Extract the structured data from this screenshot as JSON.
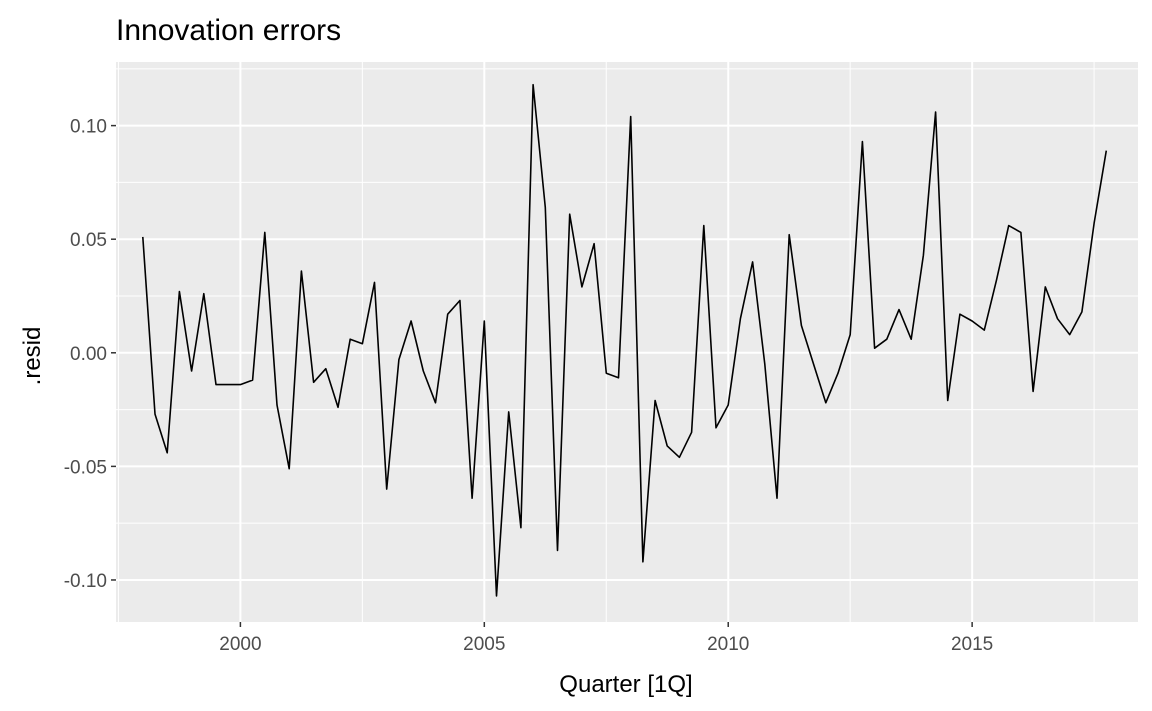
{
  "chart_data": {
    "type": "line",
    "title": "Innovation errors",
    "xlabel": "Quarter [1Q]",
    "ylabel": ".resid",
    "xlim": [
      1997.45,
      2018.4
    ],
    "ylim": [
      -0.1185,
      0.128
    ],
    "x_ticks": [
      2000,
      2005,
      2010,
      2015
    ],
    "x_tick_labels": [
      "2000",
      "2005",
      "2010",
      "2015"
    ],
    "y_ticks": [
      -0.1,
      -0.05,
      0.0,
      0.05,
      0.1
    ],
    "y_tick_labels": [
      "-0.10",
      "-0.05",
      "0.00",
      "0.05",
      "0.10"
    ],
    "grid": true,
    "background": "#ebebeb",
    "grid_color": "#ffffff",
    "line_color": "#000000",
    "series": [
      {
        "x": [
          "1998 Q1",
          "1998 Q2",
          "1998 Q3",
          "1998 Q4",
          "1999 Q1",
          "1999 Q2",
          "1999 Q3",
          "1999 Q4",
          "2000 Q1",
          "2000 Q2",
          "2000 Q3",
          "2000 Q4",
          "2001 Q1",
          "2001 Q2",
          "2001 Q3",
          "2001 Q4",
          "2002 Q1",
          "2002 Q2",
          "2002 Q3",
          "2002 Q4",
          "2003 Q1",
          "2003 Q2",
          "2003 Q3",
          "2003 Q4",
          "2004 Q1",
          "2004 Q2",
          "2004 Q3",
          "2004 Q4",
          "2005 Q1",
          "2005 Q2",
          "2005 Q3",
          "2005 Q4",
          "2006 Q1",
          "2006 Q2",
          "2006 Q3",
          "2006 Q4",
          "2007 Q1",
          "2007 Q2",
          "2007 Q3",
          "2007 Q4",
          "2008 Q1",
          "2008 Q2",
          "2008 Q3",
          "2008 Q4",
          "2009 Q1",
          "2009 Q2",
          "2009 Q3",
          "2009 Q4",
          "2010 Q1",
          "2010 Q2",
          "2010 Q3",
          "2010 Q4",
          "2011 Q1",
          "2011 Q2",
          "2011 Q3",
          "2011 Q4",
          "2012 Q1",
          "2012 Q2",
          "2012 Q3",
          "2012 Q4",
          "2013 Q1",
          "2013 Q2",
          "2013 Q3",
          "2013 Q4",
          "2014 Q1",
          "2014 Q2",
          "2014 Q3",
          "2014 Q4",
          "2015 Q1",
          "2015 Q2",
          "2015 Q3",
          "2015 Q4",
          "2016 Q1",
          "2016 Q2",
          "2016 Q3",
          "2016 Q4",
          "2017 Q1",
          "2017 Q2",
          "2017 Q3",
          "2017 Q4"
        ],
        "values": [
          0.051,
          -0.027,
          -0.044,
          0.027,
          -0.008,
          0.026,
          -0.014,
          -0.014,
          -0.014,
          -0.012,
          0.053,
          -0.023,
          -0.051,
          0.036,
          -0.013,
          -0.007,
          -0.024,
          0.006,
          0.004,
          0.031,
          -0.06,
          -0.003,
          0.014,
          -0.008,
          -0.022,
          0.017,
          0.023,
          -0.064,
          0.014,
          -0.107,
          -0.026,
          -0.077,
          0.118,
          0.064,
          -0.087,
          0.061,
          0.029,
          0.048,
          -0.009,
          -0.011,
          0.104,
          -0.092,
          -0.021,
          -0.041,
          -0.046,
          -0.035,
          0.056,
          -0.033,
          -0.023,
          0.015,
          0.04,
          -0.005,
          -0.064,
          0.052,
          0.012,
          -0.005,
          -0.022,
          -0.009,
          0.008,
          0.093,
          0.002,
          0.006,
          0.019,
          0.006,
          0.043,
          0.106,
          -0.021,
          0.017,
          0.014,
          0.01,
          0.032,
          0.056,
          0.053,
          -0.017,
          0.029,
          0.015,
          0.008,
          0.018,
          0.057,
          0.089
        ]
      }
    ]
  }
}
